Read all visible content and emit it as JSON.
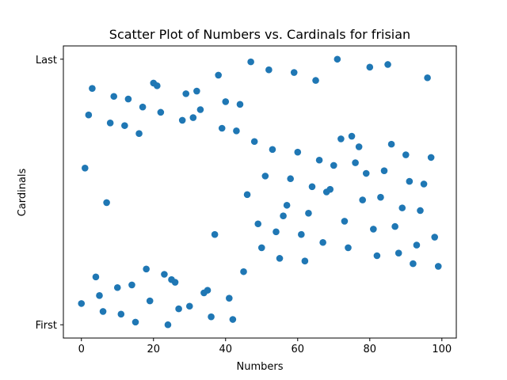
{
  "chart_data": {
    "type": "scatter",
    "title": "Scatter Plot of Numbers vs. Cardinals for frisian",
    "xlabel": "Numbers",
    "ylabel": "Cardinals",
    "xlim": [
      -5,
      104
    ],
    "ylim": [
      -0.05,
      1.05
    ],
    "x_ticks": [
      0,
      20,
      40,
      60,
      80,
      100
    ],
    "y_ticks": [
      {
        "value": 0,
        "label": "First"
      },
      {
        "value": 1,
        "label": "Last"
      }
    ],
    "grid": false,
    "legend": "none",
    "marker_color": "#1f77b4",
    "series": [
      {
        "points": [
          [
            0,
            0.08
          ],
          [
            1,
            0.59
          ],
          [
            2,
            0.79
          ],
          [
            3,
            0.89
          ],
          [
            4,
            0.18
          ],
          [
            5,
            0.11
          ],
          [
            6,
            0.05
          ],
          [
            7,
            0.46
          ],
          [
            8,
            0.76
          ],
          [
            9,
            0.86
          ],
          [
            10,
            0.14
          ],
          [
            11,
            0.04
          ],
          [
            12,
            0.75
          ],
          [
            13,
            0.85
          ],
          [
            14,
            0.15
          ],
          [
            15,
            0.01
          ],
          [
            16,
            0.72
          ],
          [
            17,
            0.82
          ],
          [
            18,
            0.21
          ],
          [
            19,
            0.09
          ],
          [
            20,
            0.91
          ],
          [
            21,
            0.9
          ],
          [
            22,
            0.8
          ],
          [
            23,
            0.19
          ],
          [
            24,
            0.0
          ],
          [
            25,
            0.17
          ],
          [
            26,
            0.16
          ],
          [
            27,
            0.06
          ],
          [
            28,
            0.77
          ],
          [
            29,
            0.87
          ],
          [
            30,
            0.07
          ],
          [
            31,
            0.78
          ],
          [
            32,
            0.88
          ],
          [
            33,
            0.81
          ],
          [
            34,
            0.12
          ],
          [
            35,
            0.13
          ],
          [
            36,
            0.03
          ],
          [
            37,
            0.34
          ],
          [
            38,
            0.94
          ],
          [
            39,
            0.74
          ],
          [
            40,
            0.84
          ],
          [
            41,
            0.1
          ],
          [
            42,
            0.02
          ],
          [
            43,
            0.73
          ],
          [
            44,
            0.83
          ],
          [
            45,
            0.2
          ],
          [
            46,
            0.49
          ],
          [
            47,
            0.99
          ],
          [
            48,
            0.69
          ],
          [
            49,
            0.38
          ],
          [
            50,
            0.29
          ],
          [
            51,
            0.56
          ],
          [
            52,
            0.96
          ],
          [
            53,
            0.66
          ],
          [
            54,
            0.35
          ],
          [
            55,
            0.25
          ],
          [
            56,
            0.41
          ],
          [
            57,
            0.45
          ],
          [
            58,
            0.55
          ],
          [
            59,
            0.95
          ],
          [
            60,
            0.65
          ],
          [
            61,
            0.34
          ],
          [
            62,
            0.24
          ],
          [
            63,
            0.42
          ],
          [
            64,
            0.52
          ],
          [
            65,
            0.92
          ],
          [
            66,
            0.62
          ],
          [
            67,
            0.31
          ],
          [
            68,
            0.5
          ],
          [
            69,
            0.51
          ],
          [
            70,
            0.6
          ],
          [
            71,
            1.0
          ],
          [
            72,
            0.7
          ],
          [
            73,
            0.39
          ],
          [
            74,
            0.29
          ],
          [
            75,
            0.71
          ],
          [
            76,
            0.61
          ],
          [
            77,
            0.67
          ],
          [
            78,
            0.47
          ],
          [
            79,
            0.57
          ],
          [
            80,
            0.97
          ],
          [
            81,
            0.36
          ],
          [
            82,
            0.26
          ],
          [
            83,
            0.48
          ],
          [
            84,
            0.58
          ],
          [
            85,
            0.98
          ],
          [
            86,
            0.68
          ],
          [
            87,
            0.37
          ],
          [
            88,
            0.27
          ],
          [
            89,
            0.44
          ],
          [
            90,
            0.64
          ],
          [
            91,
            0.54
          ],
          [
            92,
            0.23
          ],
          [
            93,
            0.3
          ],
          [
            94,
            0.43
          ],
          [
            95,
            0.53
          ],
          [
            96,
            0.93
          ],
          [
            97,
            0.63
          ],
          [
            98,
            0.33
          ],
          [
            99,
            0.22
          ]
        ]
      }
    ]
  }
}
